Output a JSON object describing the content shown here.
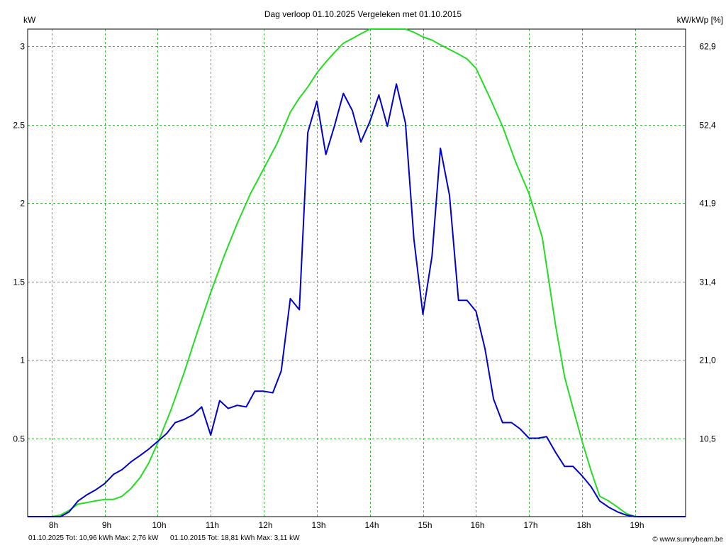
{
  "chart_data": {
    "type": "line",
    "title": "Dag  verloop 01.10.2025   Vergeleken met 01.10.2015",
    "ylabel_left": "kW",
    "ylabel_right": "kW/kWp [%]",
    "y_ticks_left": [
      "3",
      "2.5",
      "2",
      "1.5",
      "1",
      "0.5"
    ],
    "y_tick_values_left": [
      3,
      2.5,
      2,
      1.5,
      1,
      0.5
    ],
    "y_ticks_right": [
      "62,9",
      "52,4",
      "41,9",
      "31,4",
      "21,0",
      "10,5"
    ],
    "x_ticks": [
      "8h",
      "9h",
      "10h",
      "11h",
      "12h",
      "13h",
      "14h",
      "15h",
      "16h",
      "17h",
      "18h",
      "19h"
    ],
    "x_tick_values": [
      8,
      9,
      10,
      11,
      12,
      13,
      14,
      15,
      16,
      17,
      18,
      19
    ],
    "xlim": [
      7.55,
      19.95
    ],
    "ylim": [
      0,
      3.11
    ],
    "grid": true,
    "series": [
      {
        "name": "01.10.2025",
        "color": "#0000cc",
        "x": [
          7.55,
          7.8,
          8.0,
          8.17,
          8.33,
          8.5,
          8.67,
          8.83,
          9.0,
          9.17,
          9.33,
          9.5,
          9.67,
          9.83,
          10.0,
          10.17,
          10.33,
          10.5,
          10.67,
          10.83,
          11.0,
          11.17,
          11.33,
          11.5,
          11.67,
          11.83,
          12.0,
          12.17,
          12.33,
          12.5,
          12.67,
          12.83,
          13.0,
          13.17,
          13.33,
          13.5,
          13.67,
          13.83,
          14.0,
          14.17,
          14.33,
          14.5,
          14.67,
          14.83,
          15.0,
          15.17,
          15.33,
          15.5,
          15.67,
          15.83,
          16.0,
          16.17,
          16.33,
          16.5,
          16.67,
          16.83,
          17.0,
          17.17,
          17.33,
          17.5,
          17.67,
          17.83,
          18.0,
          18.17,
          18.33,
          18.5,
          18.67,
          18.83,
          19.0,
          19.17,
          19.5,
          19.95
        ],
        "y": [
          0.0,
          0.0,
          0.0,
          0.0,
          0.03,
          0.1,
          0.14,
          0.17,
          0.21,
          0.27,
          0.3,
          0.35,
          0.39,
          0.43,
          0.48,
          0.53,
          0.6,
          0.62,
          0.65,
          0.7,
          0.52,
          0.74,
          0.69,
          0.71,
          0.7,
          0.8,
          0.8,
          0.79,
          0.93,
          1.39,
          1.32,
          2.45,
          2.65,
          2.31,
          2.49,
          2.7,
          2.59,
          2.39,
          2.52,
          2.69,
          2.49,
          2.76,
          2.51,
          1.77,
          1.29,
          1.66,
          2.35,
          2.05,
          1.38,
          1.38,
          1.31,
          1.07,
          0.75,
          0.6,
          0.6,
          0.56,
          0.5,
          0.5,
          0.51,
          0.41,
          0.32,
          0.32,
          0.26,
          0.19,
          0.1,
          0.06,
          0.03,
          0.01,
          0.0,
          0.0,
          0.0,
          0.0
        ]
      },
      {
        "name": "01.10.2015",
        "color": "#22dd22",
        "x": [
          7.55,
          7.9,
          8.0,
          8.17,
          8.33,
          8.5,
          8.67,
          8.83,
          9.0,
          9.17,
          9.33,
          9.5,
          9.67,
          9.83,
          10.0,
          10.25,
          10.5,
          10.75,
          11.0,
          11.25,
          11.5,
          11.75,
          12.0,
          12.25,
          12.5,
          12.67,
          12.83,
          13.0,
          13.17,
          13.33,
          13.5,
          13.67,
          13.83,
          14.0,
          14.17,
          14.33,
          14.5,
          14.67,
          14.83,
          15.0,
          15.17,
          15.33,
          15.5,
          15.67,
          15.83,
          16.0,
          16.25,
          16.5,
          16.75,
          17.0,
          17.25,
          17.5,
          17.67,
          17.83,
          18.0,
          18.17,
          18.33,
          18.5,
          18.67,
          18.83,
          19.0,
          19.17,
          19.5,
          19.95
        ],
        "y": [
          0.0,
          0.0,
          0.0,
          0.01,
          0.04,
          0.08,
          0.09,
          0.1,
          0.11,
          0.11,
          0.13,
          0.18,
          0.25,
          0.34,
          0.47,
          0.68,
          0.92,
          1.18,
          1.43,
          1.66,
          1.87,
          2.06,
          2.22,
          2.38,
          2.58,
          2.67,
          2.74,
          2.83,
          2.9,
          2.96,
          3.02,
          3.05,
          3.08,
          3.11,
          3.11,
          3.11,
          3.11,
          3.11,
          3.09,
          3.06,
          3.04,
          3.01,
          2.98,
          2.95,
          2.92,
          2.86,
          2.68,
          2.49,
          2.26,
          2.06,
          1.78,
          1.22,
          0.89,
          0.69,
          0.48,
          0.29,
          0.13,
          0.1,
          0.06,
          0.02,
          0.0,
          0.0,
          0.0,
          0.0
        ]
      }
    ]
  },
  "footer": {
    "blue_stats": "01.10.2025 Tot: 10,96 kWh Max: 2,76 kW",
    "green_stats": "01.10.2015 Tot: 18,81 kWh Max: 3,11 kW",
    "copyright": "© www.sunnybeam.be"
  }
}
